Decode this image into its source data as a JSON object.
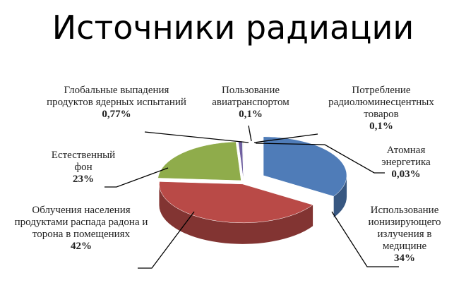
{
  "chart_data": {
    "type": "pie",
    "title": "Источники радиации",
    "categories": [
      "Использование ионизирующего излучения в медицине",
      "Облучения населения продуктами распада радона и торона в помещениях",
      "Естественный фон",
      "Глобальные выпадения продуктов ядерных испытаний",
      "Пользование авиатранспортом",
      "Потребление радиолюминесцентных товаров",
      "Атомная энергетика"
    ],
    "values": [
      34,
      42,
      23,
      0.77,
      0.1,
      0.1,
      0.03
    ],
    "value_labels": [
      "34%",
      "42%",
      "23%",
      "0,77%",
      "0,1%",
      "0,1%",
      "0,03%"
    ],
    "colors": [
      "#4f7cb8",
      "#b94a47",
      "#8fac4b",
      "#7060a0",
      "#3f8fb0",
      "#e08a3a",
      "#9ab6d8"
    ]
  }
}
